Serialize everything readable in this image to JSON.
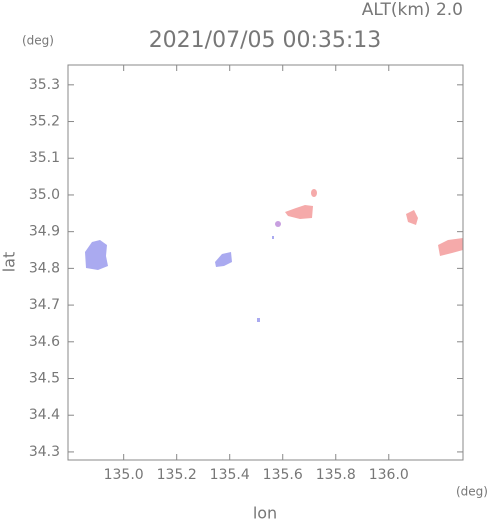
{
  "chart_data": {
    "type": "map",
    "altitude_label": "ALT(km) 2.0",
    "title": "2021/07/05 00:35:13",
    "y_unit": "(deg)",
    "x_unit": "(deg)",
    "xlabel": "lon",
    "ylabel": "lat",
    "xlim": [
      134.79,
      136.28
    ],
    "ylim": [
      34.278,
      35.354
    ],
    "xticks": [
      {
        "value": 135.0,
        "label": "135.0"
      },
      {
        "value": 135.2,
        "label": "135.2"
      },
      {
        "value": 135.4,
        "label": "135.4"
      },
      {
        "value": 135.6,
        "label": "135.6"
      },
      {
        "value": 135.8,
        "label": "135.8"
      },
      {
        "value": 136.0,
        "label": "136.0"
      }
    ],
    "yticks": [
      {
        "value": 34.3,
        "label": "34.3"
      },
      {
        "value": 34.4,
        "label": "34.4"
      },
      {
        "value": 34.5,
        "label": "34.5"
      },
      {
        "value": 34.6,
        "label": "34.6"
      },
      {
        "value": 34.7,
        "label": "34.7"
      },
      {
        "value": 34.8,
        "label": "34.8"
      },
      {
        "value": 34.9,
        "label": "34.9"
      },
      {
        "value": 35.0,
        "label": "35.0"
      },
      {
        "value": 35.1,
        "label": "35.1"
      },
      {
        "value": 35.2,
        "label": "35.2"
      },
      {
        "value": 35.3,
        "label": "35.3"
      }
    ]
  }
}
